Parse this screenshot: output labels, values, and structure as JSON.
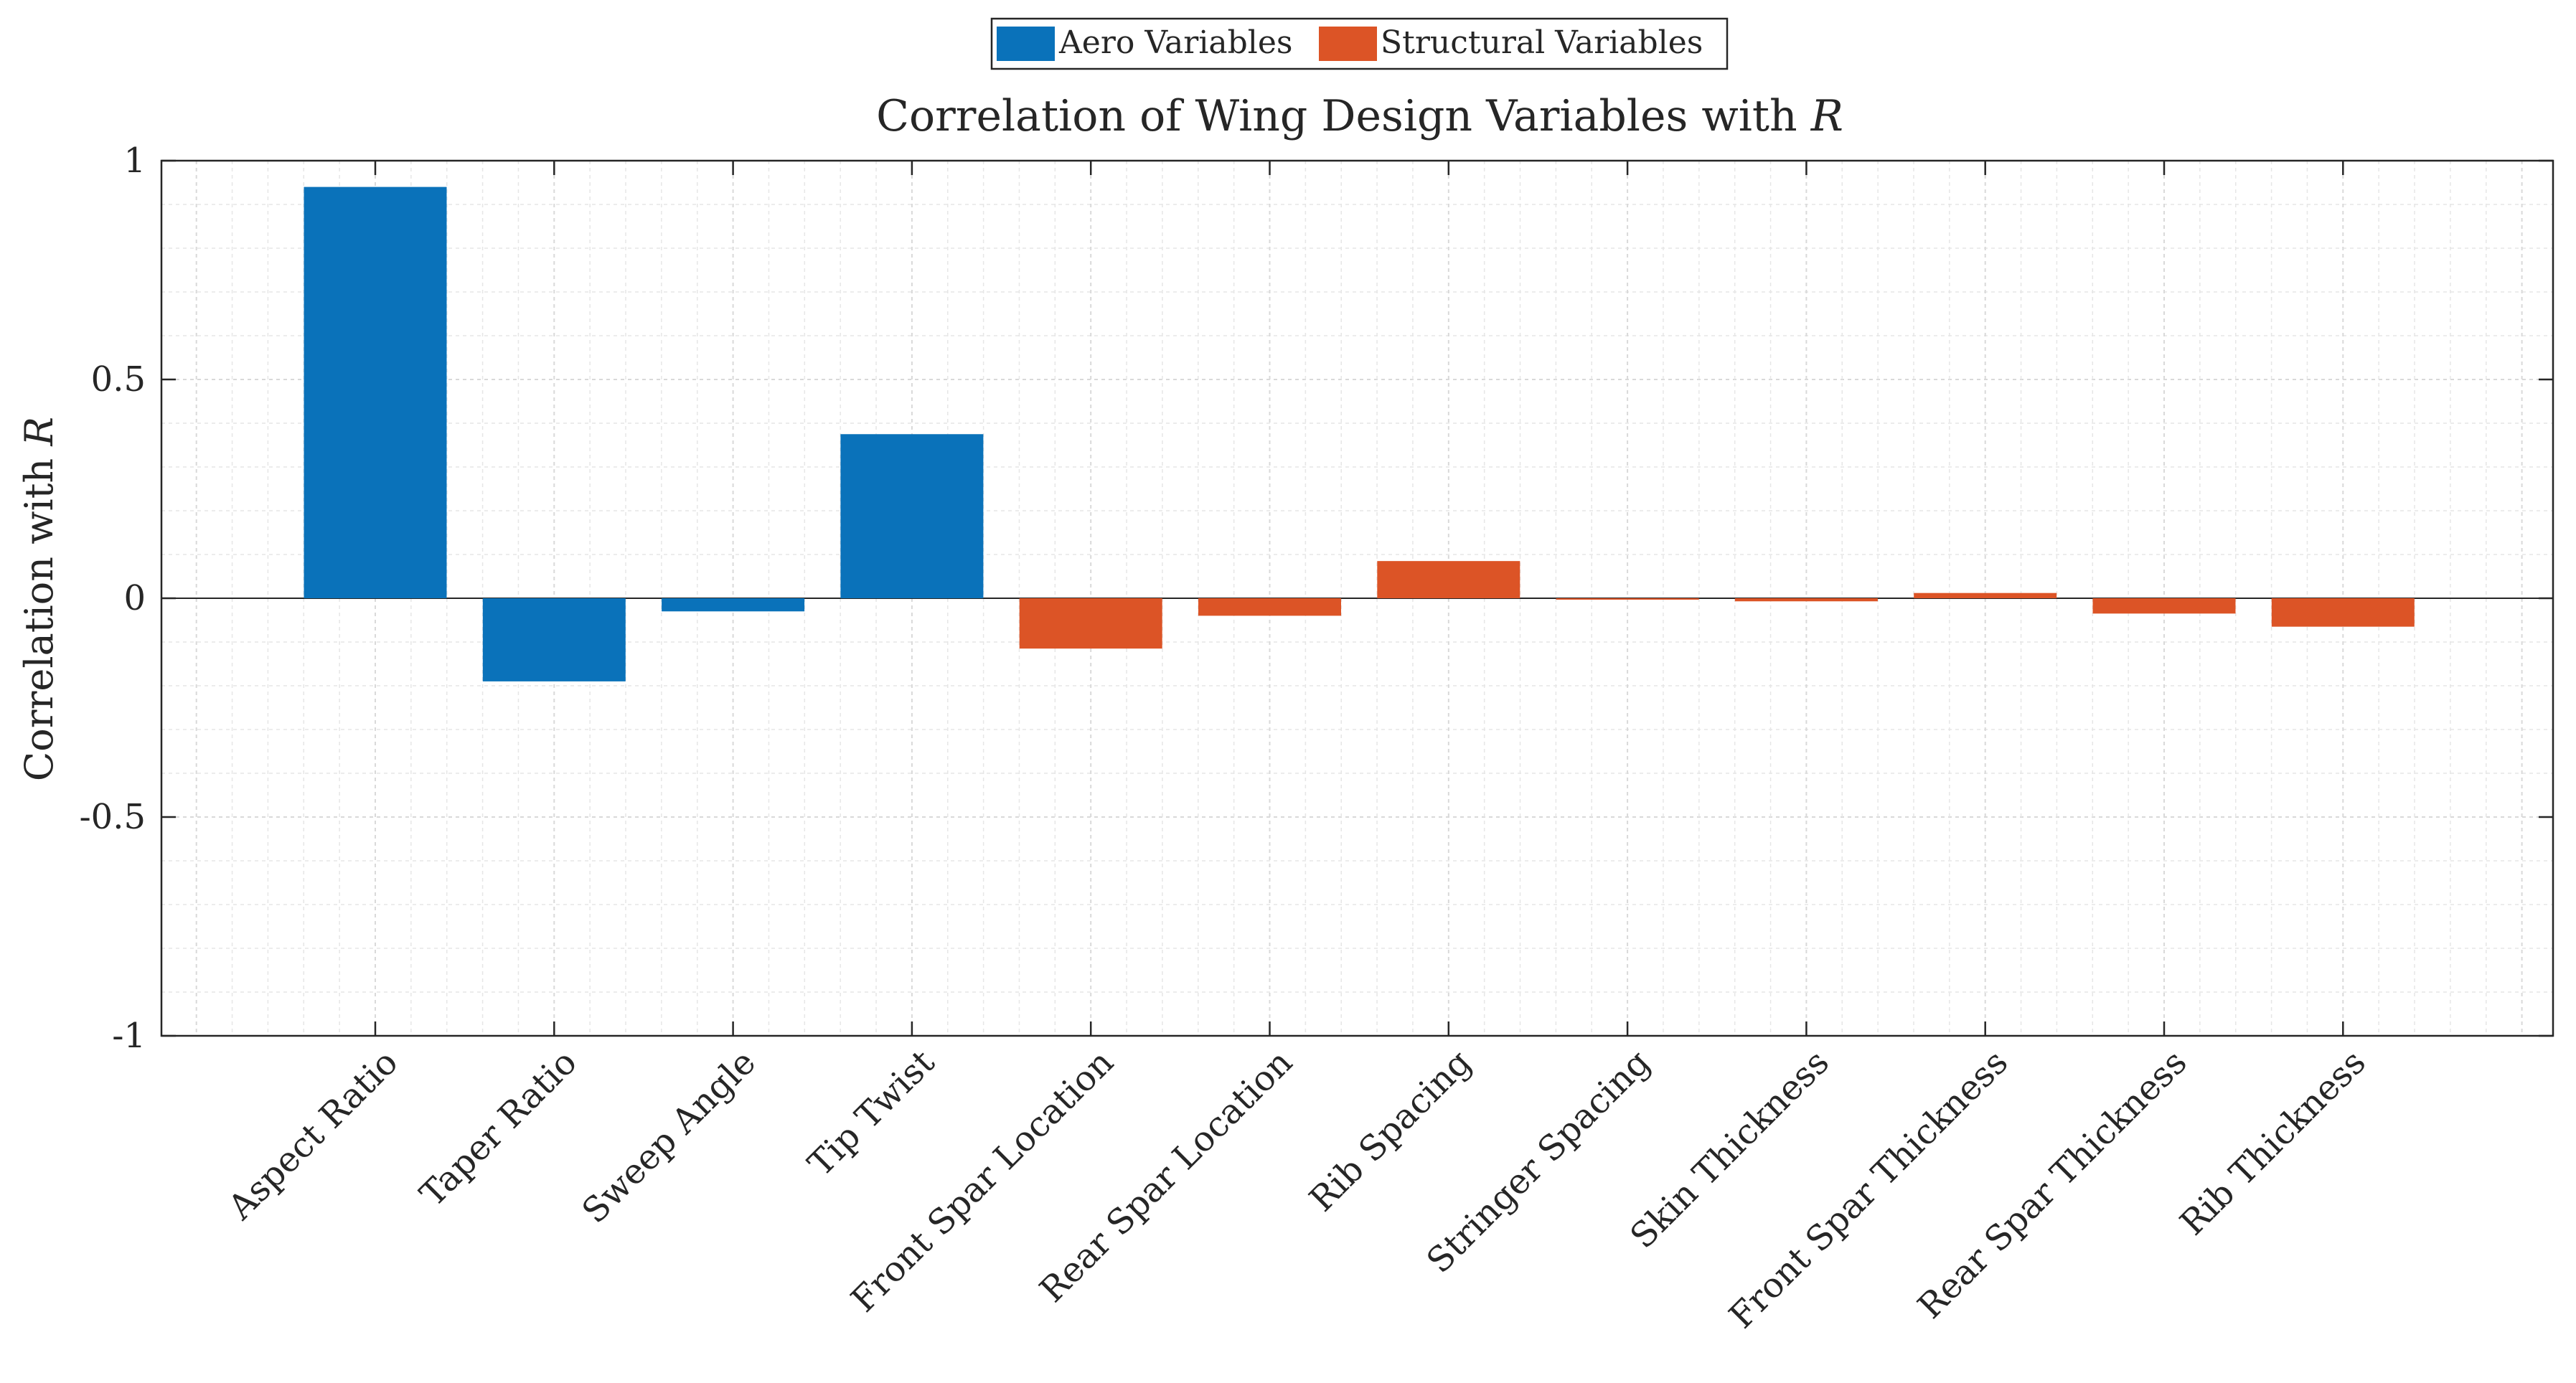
{
  "chart_data": {
    "type": "bar",
    "title": "Correlation of Wing Design Variables with",
    "title_symbol": "R",
    "ylabel": "Correlation with",
    "ylabel_symbol": "R",
    "xlabel": "",
    "ylim": [
      -1,
      1
    ],
    "yticks": [
      1,
      0.5,
      0,
      -0.5,
      -1
    ],
    "ytick_labels": [
      "1",
      "0.5",
      "0",
      "-0.5",
      "-1"
    ],
    "grid": true,
    "minor_grid": true,
    "legend_position": "top-center",
    "categories": [
      "Aspect Ratio",
      "Taper Ratio",
      "Sweep Angle",
      "Tip Twist",
      "Front Spar Location",
      "Rear Spar Location",
      "Rib Spacing",
      "Stringer Spacing",
      "Skin Thickness",
      "Front Spar Thickness",
      "Rear Spar Thickness",
      "Rib Thickness"
    ],
    "values": [
      0.94,
      -0.19,
      -0.03,
      0.375,
      -0.115,
      -0.04,
      0.085,
      -0.002,
      -0.007,
      0.012,
      -0.035,
      -0.065
    ],
    "groups": [
      "aero",
      "aero",
      "aero",
      "aero",
      "structural",
      "structural",
      "structural",
      "structural",
      "structural",
      "structural",
      "structural",
      "structural"
    ],
    "series": [
      {
        "key": "aero",
        "name": "Aero Variables",
        "color": "#0a72ba"
      },
      {
        "key": "structural",
        "name": "Structural Variables",
        "color": "#dc5426"
      }
    ]
  }
}
